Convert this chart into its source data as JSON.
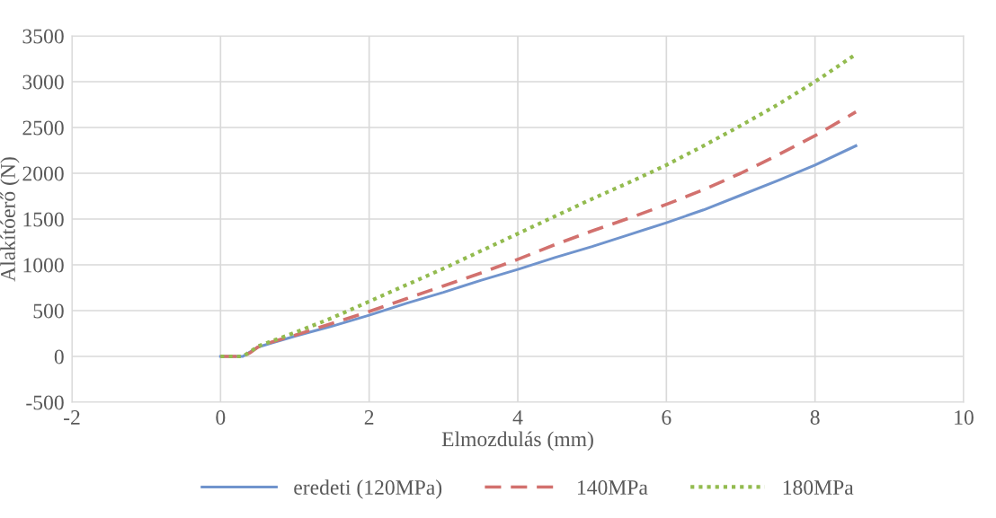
{
  "chart_data": {
    "type": "line",
    "xlabel": "Elmozdulás (mm)",
    "ylabel": "Alakítóerő (N)",
    "xlim": [
      -2,
      10
    ],
    "xticks": [
      -2,
      0,
      2,
      4,
      6,
      8,
      10
    ],
    "ylim": [
      -500,
      3500
    ],
    "yticks": [
      -500,
      0,
      500,
      1000,
      1500,
      2000,
      2500,
      3000,
      3500
    ],
    "grid": true,
    "legend": "bottom",
    "series": [
      {
        "name": "eredeti (120MPa)",
        "color": "#7094cd",
        "line_style": "solid",
        "x": [
          0,
          0.3,
          0.5,
          0.7,
          1,
          1.5,
          2,
          2.5,
          3,
          3.5,
          4,
          4.5,
          5,
          5.5,
          6,
          6.5,
          7,
          7.5,
          8,
          8.55
        ],
        "values": [
          0,
          0,
          100,
          150,
          220,
          330,
          450,
          580,
          700,
          830,
          950,
          1080,
          1200,
          1330,
          1460,
          1600,
          1760,
          1920,
          2090,
          2300
        ]
      },
      {
        "name": "140MPa",
        "color": "#d2716e",
        "line_style": "dashed",
        "x": [
          0,
          0.3,
          0.4,
          0.5,
          0.7,
          1,
          1.5,
          2,
          2.5,
          3,
          3.5,
          4,
          4.5,
          5,
          5.5,
          6,
          6.5,
          7,
          7.5,
          8,
          8.55
        ],
        "values": [
          0,
          0,
          40,
          100,
          160,
          230,
          360,
          490,
          630,
          770,
          910,
          1060,
          1220,
          1370,
          1510,
          1660,
          1820,
          2000,
          2200,
          2410,
          2670
        ]
      },
      {
        "name": "180MPa",
        "color": "#93bb4f",
        "line_style": "dotted",
        "x": [
          0,
          0.3,
          0.4,
          0.5,
          0.7,
          1,
          1.5,
          2,
          2.5,
          3,
          3.5,
          4,
          4.5,
          5,
          5.5,
          6,
          6.5,
          7,
          7.5,
          8,
          8.55
        ],
        "values": [
          0,
          0,
          50,
          110,
          170,
          260,
          420,
          600,
          780,
          960,
          1150,
          1340,
          1530,
          1720,
          1900,
          2090,
          2300,
          2520,
          2750,
          3000,
          3300
        ]
      }
    ]
  }
}
